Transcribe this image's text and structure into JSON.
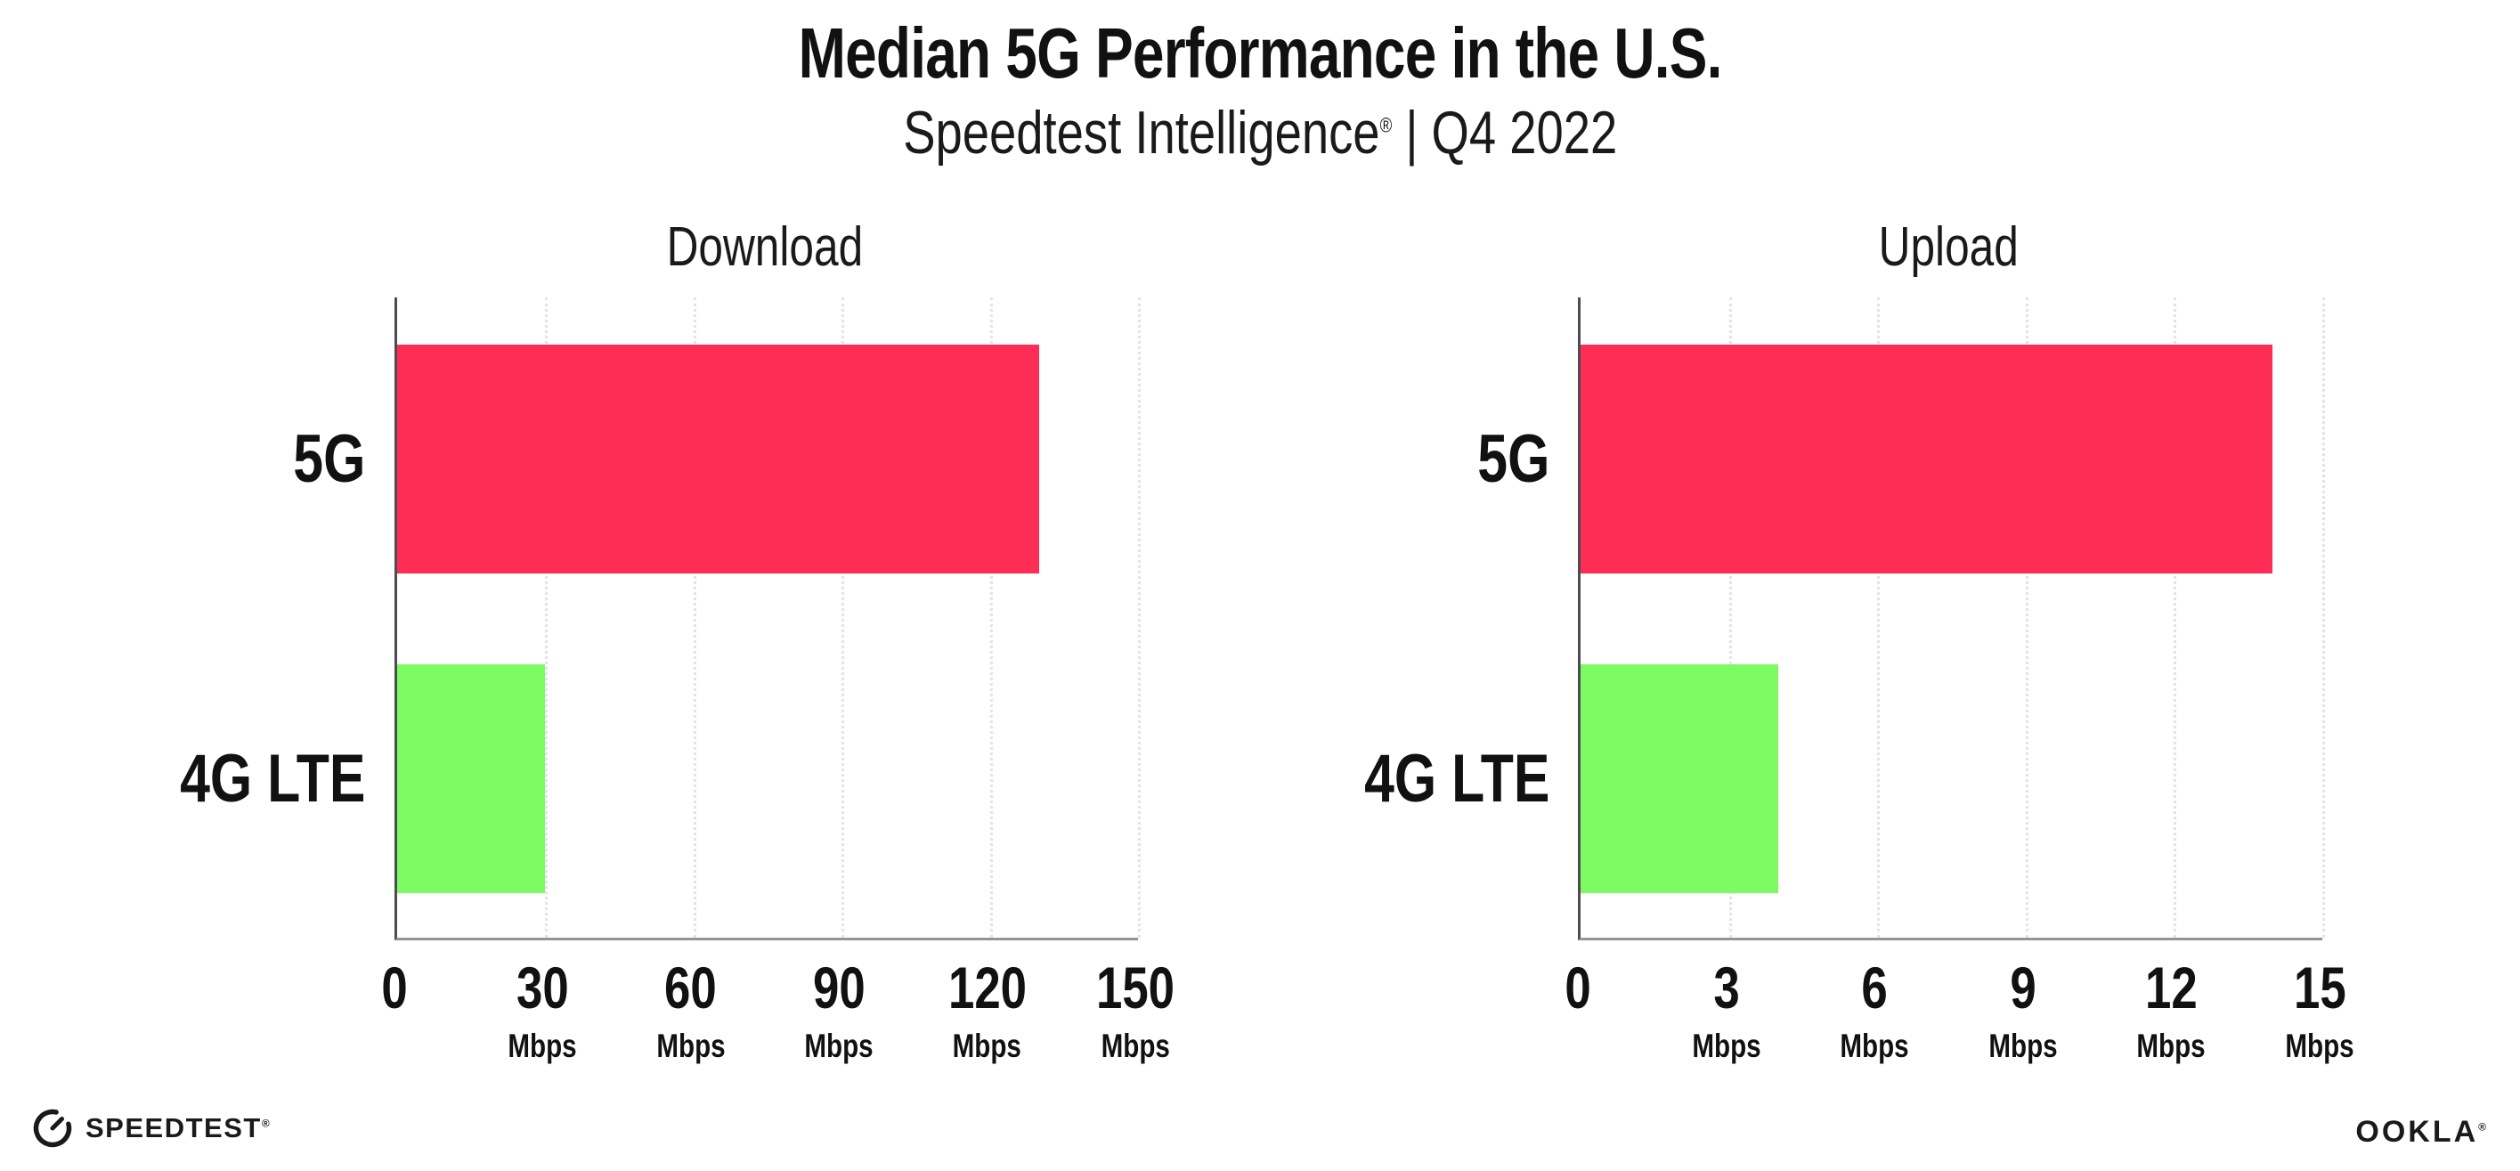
{
  "header": {
    "title": "Median 5G Performance in the U.S.",
    "subtitle_brand": "Speedtest Intelligence",
    "subtitle_reg": "®",
    "subtitle_rest": " | Q4 2022"
  },
  "chart_data": [
    {
      "type": "bar",
      "orientation": "horizontal",
      "title": "Download",
      "categories": [
        "5G",
        "4G LTE"
      ],
      "values": [
        130,
        30
      ],
      "unit": "Mbps",
      "xticks": [
        0,
        30,
        60,
        90,
        120,
        150
      ],
      "xlim": [
        0,
        150
      ],
      "bar_colors": [
        "#FD2D55",
        "#7EFB63"
      ],
      "grid": "dotted-vertical",
      "legend": "none"
    },
    {
      "type": "bar",
      "orientation": "horizontal",
      "title": "Upload",
      "categories": [
        "5G",
        "4G LTE"
      ],
      "values": [
        14,
        4
      ],
      "unit": "Mbps",
      "xticks": [
        0,
        3,
        6,
        9,
        12,
        15
      ],
      "xlim": [
        0,
        15
      ],
      "bar_colors": [
        "#FD2D55",
        "#7EFB63"
      ],
      "grid": "dotted-vertical",
      "legend": "none"
    }
  ],
  "colors": {
    "bar_5g": "#FD2D55",
    "bar_4g_lte": "#7EFB63",
    "grid": "#E2E2EC",
    "y_axis": "#4C4C55",
    "x_axis": "#93939B",
    "text": "#111111"
  },
  "footer": {
    "speedtest_label": "SPEEDTEST",
    "speedtest_reg": "®",
    "ookla_label": "OOKLA",
    "ookla_reg": "®"
  }
}
